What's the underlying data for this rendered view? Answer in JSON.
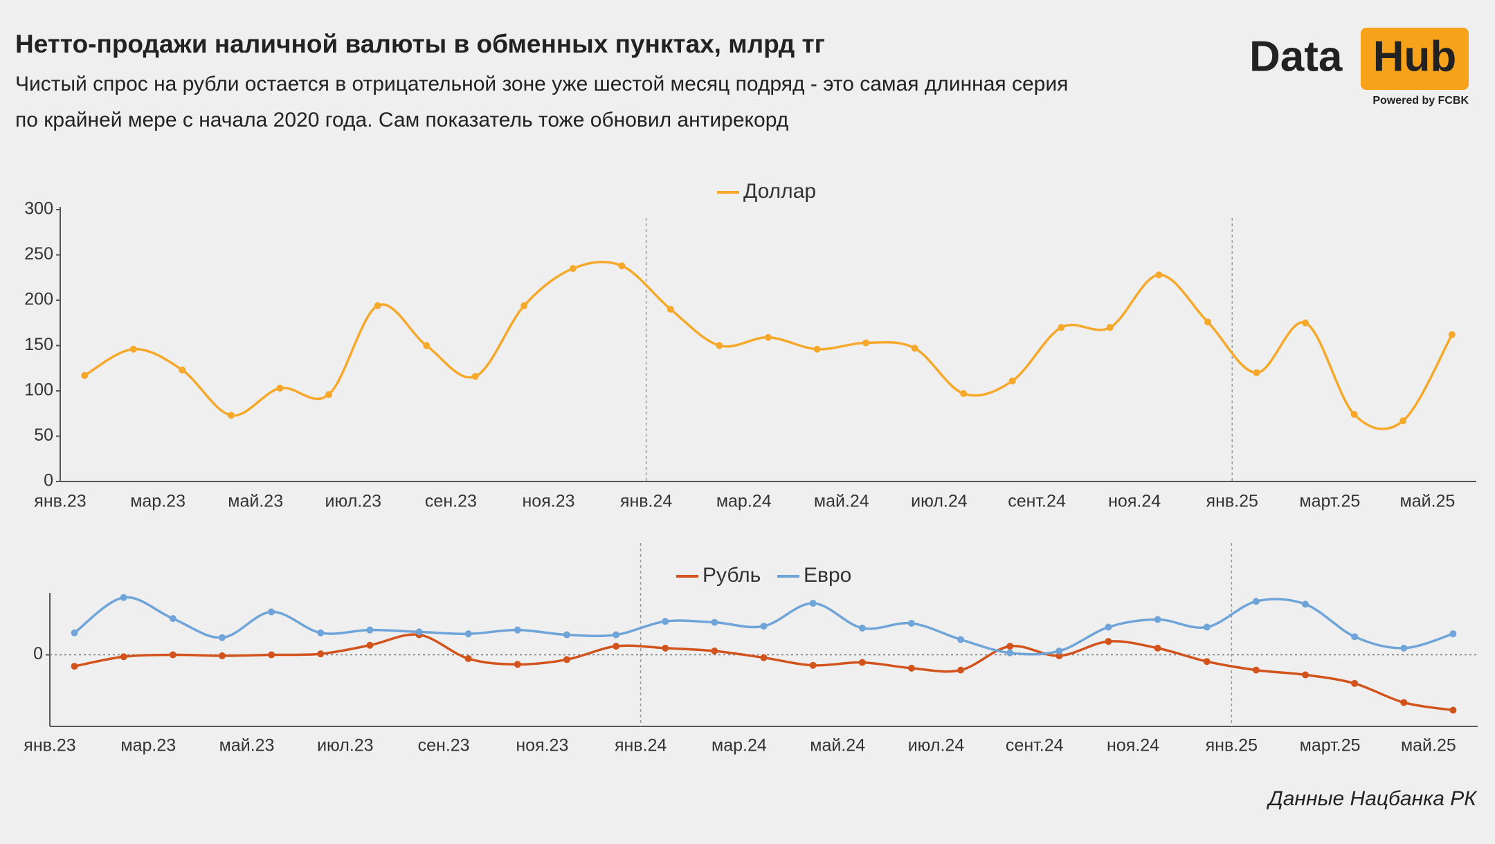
{
  "header": {
    "title": "Нетто-продажи наличной валюты в обменных пунктах, млрд тг",
    "subtitle": [
      "Чистый спрос на рубли остается в отрицательной зоне уже шестой месяц подряд - это самая длинная серия",
      "по крайней мере с начала 2020 года. Сам показатель тоже обновил антирекорд"
    ]
  },
  "logo": {
    "left": "Data",
    "right": "Hub",
    "tagline": "Powered by FCBK"
  },
  "source": "Данные Нацбанка РК",
  "chart_data": [
    {
      "type": "line",
      "categories": [
        "янв.23",
        null,
        "мар.23",
        null,
        "май.23",
        null,
        "июл.23",
        null,
        "сен.23",
        null,
        "ноя.23",
        null,
        "янв.24",
        null,
        "мар.24",
        null,
        "май.24",
        null,
        "июл.24",
        null,
        "сент.24",
        null,
        "ноя.24",
        null,
        "янв.25",
        null,
        "март.25",
        null,
        "май.25"
      ],
      "series": [
        {
          "name": "Доллар",
          "color": "#f5a82a",
          "values": [
            117,
            146,
            123,
            73,
            103,
            96,
            194,
            150,
            116,
            194,
            235,
            238,
            190,
            150,
            159,
            146,
            153,
            147,
            97,
            111,
            170,
            170,
            228,
            176,
            120,
            175,
            74,
            67,
            162
          ]
        }
      ],
      "ylim": [
        0,
        300
      ],
      "yticks": [
        0,
        50,
        100,
        150,
        200,
        250,
        300
      ],
      "grid": false,
      "legend": "top"
    },
    {
      "type": "line",
      "categories": [
        "янв.23",
        null,
        "мар.23",
        null,
        "май.23",
        null,
        "июл.23",
        null,
        "сен.23",
        null,
        "ноя.23",
        null,
        "янв.24",
        null,
        "мар.24",
        null,
        "май.24",
        null,
        "июл.24",
        null,
        "сент.24",
        null,
        "ноя.24",
        null,
        "янв.25",
        null,
        "март.25",
        null,
        "май.25"
      ],
      "series": [
        {
          "name": "Рубль",
          "color": "#d2531c",
          "values": [
            -12,
            -2,
            0,
            -1,
            0,
            1,
            10,
            21,
            -4,
            -10,
            -5,
            9,
            7,
            4,
            -3,
            -11,
            -8,
            -14,
            -16,
            9,
            -1,
            14,
            7,
            -7,
            -16,
            -21,
            -30,
            -50,
            -58
          ]
        },
        {
          "name": "Евро",
          "color": "#6fa4d9",
          "values": [
            23,
            60,
            38,
            18,
            45,
            23,
            26,
            24,
            22,
            26,
            21,
            21,
            35,
            34,
            30,
            54,
            28,
            33,
            16,
            2,
            4,
            29,
            37,
            29,
            56,
            53,
            19,
            7,
            22
          ]
        }
      ],
      "ylim": [
        -75,
        62
      ],
      "yticks": [
        0
      ],
      "grid": true,
      "legend": "top"
    }
  ]
}
